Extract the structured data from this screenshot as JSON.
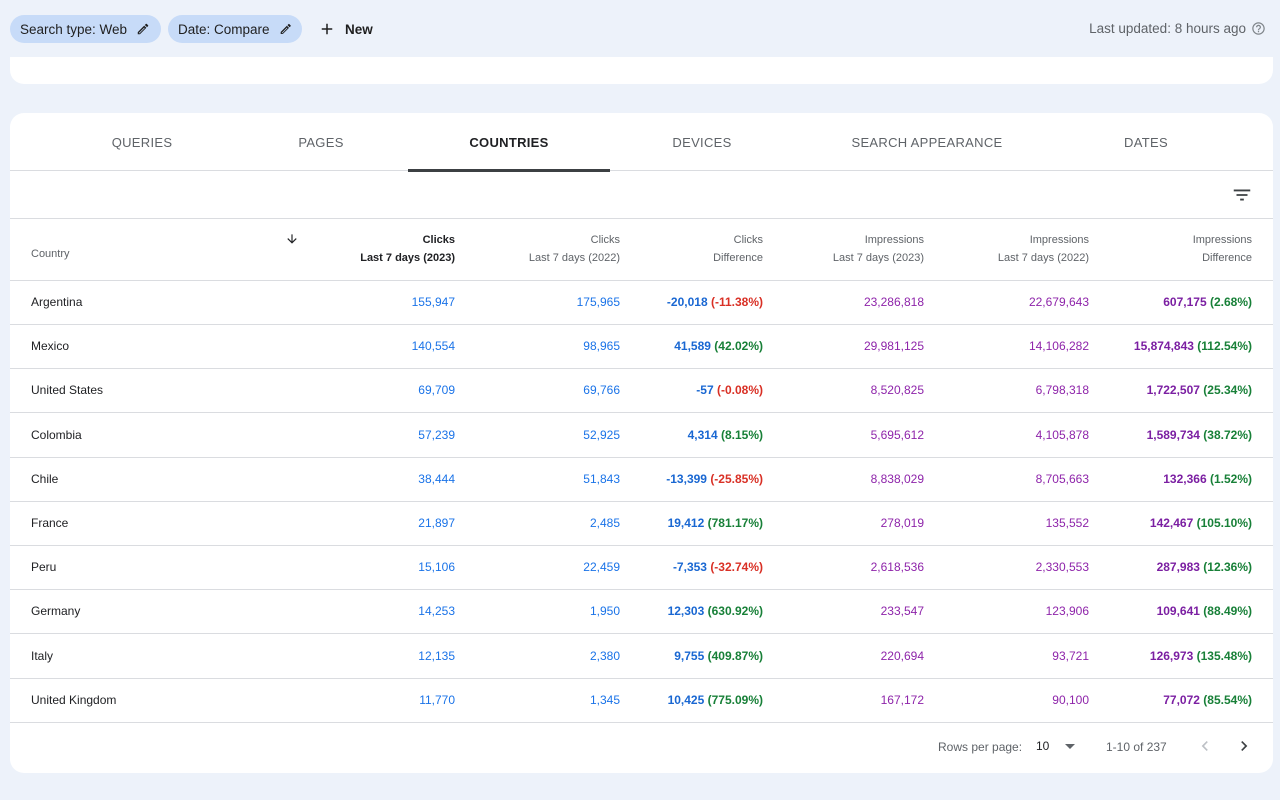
{
  "topbar": {
    "chips": [
      {
        "label": "Search type: Web"
      },
      {
        "label": "Date: Compare"
      }
    ],
    "new_label": "New",
    "last_updated": "Last updated: 8 hours ago"
  },
  "tabs": [
    {
      "label": "QUERIES",
      "active": false
    },
    {
      "label": "PAGES",
      "active": false
    },
    {
      "label": "COUNTRIES",
      "active": true
    },
    {
      "label": "DEVICES",
      "active": false
    },
    {
      "label": "SEARCH APPEARANCE",
      "active": false
    },
    {
      "label": "DATES",
      "active": false
    }
  ],
  "table": {
    "headers": [
      {
        "line1": "",
        "line2": "Country"
      },
      {
        "line1": "Clicks",
        "line2": "Last 7 days (2023)",
        "sorted": true
      },
      {
        "line1": "Clicks",
        "line2": "Last 7 days (2022)"
      },
      {
        "line1": "Clicks",
        "line2": "Difference"
      },
      {
        "line1": "Impressions",
        "line2": "Last 7 days (2023)"
      },
      {
        "line1": "Impressions",
        "line2": "Last 7 days (2022)"
      },
      {
        "line1": "Impressions",
        "line2": "Difference"
      }
    ],
    "rows": [
      {
        "country": "Argentina",
        "clicks_2023": "155,947",
        "clicks_2022": "175,965",
        "clicks_diff": "-20,018",
        "clicks_pct": "(-11.38%)",
        "clicks_pct_sign": "neg",
        "impr_2023": "23,286,818",
        "impr_2022": "22,679,643",
        "impr_diff": "607,175",
        "impr_pct": "(2.68%)",
        "impr_pct_sign": "pos"
      },
      {
        "country": "Mexico",
        "clicks_2023": "140,554",
        "clicks_2022": "98,965",
        "clicks_diff": "41,589",
        "clicks_pct": "(42.02%)",
        "clicks_pct_sign": "pos",
        "impr_2023": "29,981,125",
        "impr_2022": "14,106,282",
        "impr_diff": "15,874,843",
        "impr_pct": "(112.54%)",
        "impr_pct_sign": "pos"
      },
      {
        "country": "United States",
        "clicks_2023": "69,709",
        "clicks_2022": "69,766",
        "clicks_diff": "-57",
        "clicks_pct": "(-0.08%)",
        "clicks_pct_sign": "neg",
        "impr_2023": "8,520,825",
        "impr_2022": "6,798,318",
        "impr_diff": "1,722,507",
        "impr_pct": "(25.34%)",
        "impr_pct_sign": "pos"
      },
      {
        "country": "Colombia",
        "clicks_2023": "57,239",
        "clicks_2022": "52,925",
        "clicks_diff": "4,314",
        "clicks_pct": "(8.15%)",
        "clicks_pct_sign": "pos",
        "impr_2023": "5,695,612",
        "impr_2022": "4,105,878",
        "impr_diff": "1,589,734",
        "impr_pct": "(38.72%)",
        "impr_pct_sign": "pos"
      },
      {
        "country": "Chile",
        "clicks_2023": "38,444",
        "clicks_2022": "51,843",
        "clicks_diff": "-13,399",
        "clicks_pct": "(-25.85%)",
        "clicks_pct_sign": "neg",
        "impr_2023": "8,838,029",
        "impr_2022": "8,705,663",
        "impr_diff": "132,366",
        "impr_pct": "(1.52%)",
        "impr_pct_sign": "pos"
      },
      {
        "country": "France",
        "clicks_2023": "21,897",
        "clicks_2022": "2,485",
        "clicks_diff": "19,412",
        "clicks_pct": "(781.17%)",
        "clicks_pct_sign": "pos",
        "impr_2023": "278,019",
        "impr_2022": "135,552",
        "impr_diff": "142,467",
        "impr_pct": "(105.10%)",
        "impr_pct_sign": "pos"
      },
      {
        "country": "Peru",
        "clicks_2023": "15,106",
        "clicks_2022": "22,459",
        "clicks_diff": "-7,353",
        "clicks_pct": "(-32.74%)",
        "clicks_pct_sign": "neg",
        "impr_2023": "2,618,536",
        "impr_2022": "2,330,553",
        "impr_diff": "287,983",
        "impr_pct": "(12.36%)",
        "impr_pct_sign": "pos"
      },
      {
        "country": "Germany",
        "clicks_2023": "14,253",
        "clicks_2022": "1,950",
        "clicks_diff": "12,303",
        "clicks_pct": "(630.92%)",
        "clicks_pct_sign": "pos",
        "impr_2023": "233,547",
        "impr_2022": "123,906",
        "impr_diff": "109,641",
        "impr_pct": "(88.49%)",
        "impr_pct_sign": "pos"
      },
      {
        "country": "Italy",
        "clicks_2023": "12,135",
        "clicks_2022": "2,380",
        "clicks_diff": "9,755",
        "clicks_pct": "(409.87%)",
        "clicks_pct_sign": "pos",
        "impr_2023": "220,694",
        "impr_2022": "93,721",
        "impr_diff": "126,973",
        "impr_pct": "(135.48%)",
        "impr_pct_sign": "pos"
      },
      {
        "country": "United Kingdom",
        "clicks_2023": "11,770",
        "clicks_2022": "1,345",
        "clicks_diff": "10,425",
        "clicks_pct": "(775.09%)",
        "clicks_pct_sign": "pos",
        "impr_2023": "167,172",
        "impr_2022": "90,100",
        "impr_diff": "77,072",
        "impr_pct": "(85.54%)",
        "impr_pct_sign": "pos"
      }
    ]
  },
  "pagination": {
    "rows_per_page_label": "Rows per page:",
    "rows_per_page_value": "10",
    "range": "1-10 of 237"
  },
  "icons": {
    "edit": "pencil-icon",
    "add": "plus-icon",
    "help": "help-circle-icon",
    "filter": "filter-list-icon",
    "sort": "arrow-down-icon",
    "prev": "chevron-left-icon",
    "next": "chevron-right-icon"
  },
  "colors": {
    "chip_bg": "#c7dbf8",
    "clicks_blue": "#1a73e8",
    "impressions_purple": "#8e24aa",
    "positive_green": "#188038",
    "negative_red": "#d93025"
  }
}
